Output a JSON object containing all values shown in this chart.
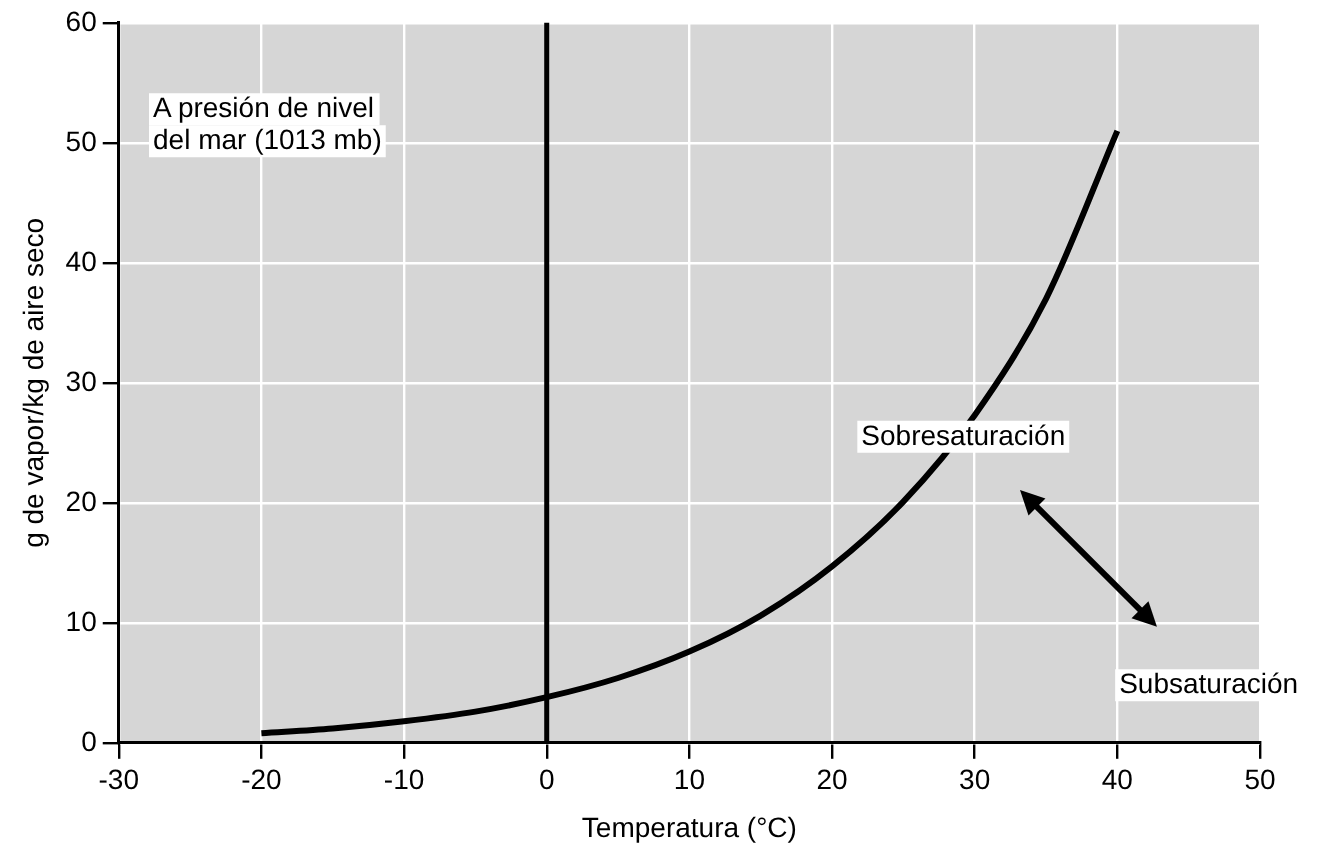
{
  "chart_data": {
    "type": "line",
    "xlabel": "Temperatura (°C)",
    "ylabel": "g de vapor/kg de aire seco",
    "x": [
      -20,
      -15,
      -10,
      -5,
      0,
      5,
      10,
      15,
      20,
      25,
      30,
      35,
      40
    ],
    "series": [
      {
        "color": "#000000",
        "values": [
          0.8,
          1.2,
          1.8,
          2.6,
          3.8,
          5.4,
          7.6,
          10.6,
          14.7,
          20.1,
          27.3,
          37,
          51
        ]
      }
    ],
    "xlim": [
      -30,
      50
    ],
    "xticks": [
      -30,
      -20,
      -10,
      0,
      10,
      20,
      30,
      40,
      50
    ],
    "ylim": [
      0,
      60
    ],
    "yticks": [
      0,
      10,
      20,
      30,
      40,
      50,
      60
    ],
    "grid": true,
    "legend": false,
    "marker": "none",
    "line_style": "solid",
    "ref_lines": [
      {
        "axis": "x",
        "value": 0,
        "color": "#000000"
      }
    ],
    "annotations": [
      "A presión de nivel\ndel mar (1013 mb)",
      "Sobresaturación",
      "Subsaturación"
    ]
  }
}
